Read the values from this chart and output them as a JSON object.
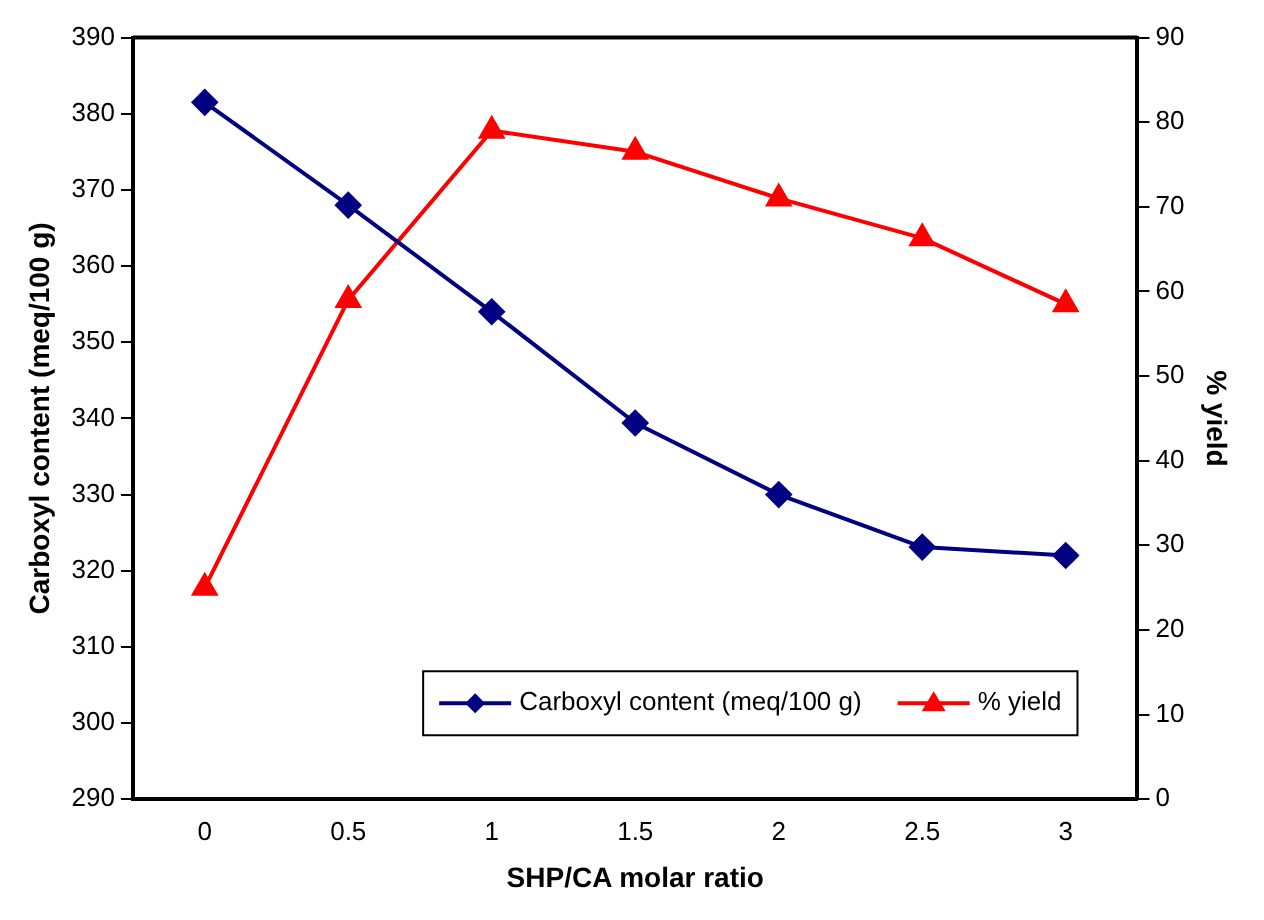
{
  "chart_data": {
    "type": "line",
    "xlabel": "SHP/CA molar ratio",
    "ylabel": "Carboxyl content (meq/100 g)",
    "y2label": "% yield",
    "categories": [
      "0",
      "0.5",
      "1",
      "1.5",
      "2",
      "2.5",
      "3"
    ],
    "series": [
      {
        "name": "Carboxyl content (meq/100 g)",
        "color": "#000080",
        "marker": "diamond",
        "values": [
          381.5,
          368,
          354,
          339.4,
          330,
          323.1,
          322
        ]
      },
      {
        "name": "% yield",
        "color": "#ff0000",
        "marker": "triangle",
        "axis": "y2",
        "values": [
          25,
          59,
          79,
          76.5,
          71,
          66.3,
          58.5
        ]
      }
    ],
    "ylim": [
      290,
      390
    ],
    "yticks": [
      290,
      300,
      310,
      320,
      330,
      340,
      350,
      360,
      370,
      380,
      390
    ],
    "y2lim": [
      0,
      90
    ],
    "y2ticks": [
      0,
      10,
      20,
      30,
      40,
      50,
      60,
      70,
      80,
      90
    ],
    "grid": false,
    "legend": "bottom right",
    "line_style": "solid"
  }
}
